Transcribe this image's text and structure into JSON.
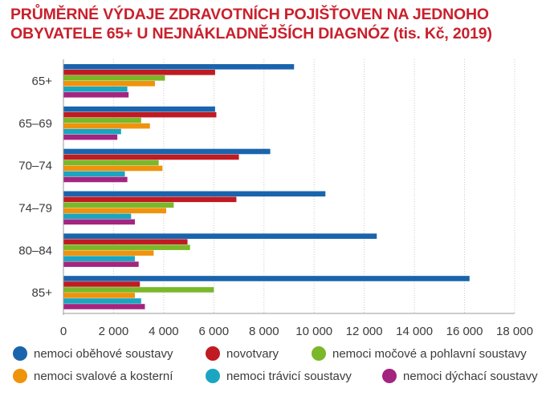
{
  "title_line1": "PRŮMĚRNÉ VÝDAJE ZDRAVOTNÍCH POJIŠŤOVEN NA JEDNOHO",
  "title_line2": "OBYVATELE 65+ U NEJNÁKLADNĚJŠÍCH DIAGNÓZ (tis. Kč, 2019)",
  "chart_data": {
    "type": "bar",
    "orientation": "horizontal",
    "categories": [
      "65+",
      "65–69",
      "70–74",
      "74–79",
      "80–84",
      "85+"
    ],
    "series": [
      {
        "name": "nemoci oběhové soustavy",
        "color": "#1a64ad",
        "values": [
          9200,
          6050,
          8250,
          10450,
          12500,
          16200
        ]
      },
      {
        "name": "novotvary",
        "color": "#c01a22",
        "values": [
          6050,
          6100,
          7000,
          6900,
          4950,
          3050
        ]
      },
      {
        "name": "nemoci močové a pohlavní soustavy",
        "color": "#7ab829",
        "values": [
          4050,
          3100,
          3800,
          4400,
          5050,
          6000
        ]
      },
      {
        "name": "nemoci svalové a  kosterní",
        "color": "#f0930c",
        "values": [
          3650,
          3450,
          3950,
          4100,
          3600,
          2850
        ]
      },
      {
        "name": "nemoci trávicí soustavy",
        "color": "#1aa5c0",
        "values": [
          2550,
          2300,
          2450,
          2700,
          2850,
          3100
        ]
      },
      {
        "name": "nemoci dýchací soustavy",
        "color": "#a3257f",
        "values": [
          2600,
          2150,
          2550,
          2850,
          3000,
          3250
        ]
      }
    ],
    "xlim": [
      0,
      18000
    ],
    "xticks": [
      0,
      2000,
      4000,
      6000,
      8000,
      10000,
      12000,
      14000,
      16000,
      18000
    ],
    "xtick_labels": [
      "0",
      "2 000",
      "4 000",
      "6 000",
      "8 000",
      "10 000",
      "12 000",
      "14 000",
      "16 000",
      "18 000"
    ],
    "grid": true,
    "legend_placement": "bottom"
  }
}
